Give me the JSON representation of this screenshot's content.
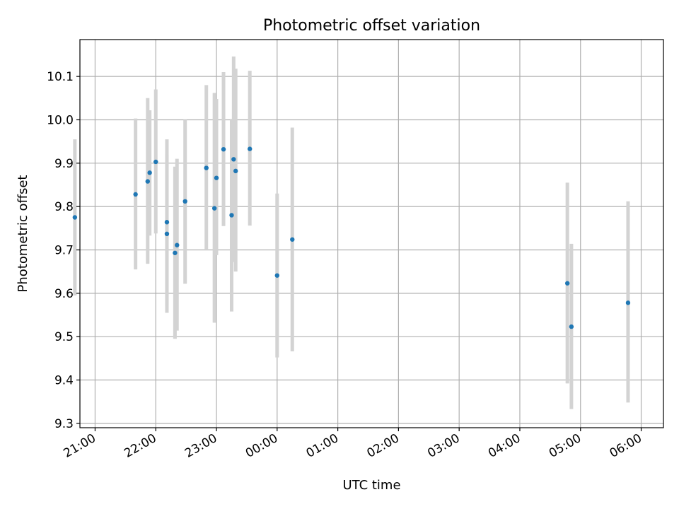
{
  "chart_data": {
    "type": "scatter",
    "title": "Photometric offset variation",
    "xlabel": "UTC time",
    "ylabel": "Photometric offset",
    "xlim": [
      "20:45",
      "30:22"
    ],
    "ylim": [
      9.29,
      10.185
    ],
    "x_ticks": [
      "21:00",
      "22:00",
      "23:00",
      "00:00",
      "01:00",
      "02:00",
      "03:00",
      "04:00",
      "05:00",
      "06:00"
    ],
    "y_ticks": [
      9.3,
      9.4,
      9.5,
      9.6,
      9.7,
      9.8,
      9.9,
      10.0,
      10.1
    ],
    "grid": true,
    "point_color": "#1f77b4",
    "error_color": "#d3d3d3",
    "points": [
      {
        "time": "20:40",
        "y": 9.775,
        "yerr_low": 9.595,
        "yerr_high": 9.955
      },
      {
        "time": "21:40",
        "y": 9.828,
        "yerr_low": 9.655,
        "yerr_high": 10.003
      },
      {
        "time": "21:52",
        "y": 9.858,
        "yerr_low": 9.668,
        "yerr_high": 10.05
      },
      {
        "time": "21:54",
        "y": 9.878,
        "yerr_low": 9.733,
        "yerr_high": 10.022
      },
      {
        "time": "22:00",
        "y": 9.903,
        "yerr_low": 9.738,
        "yerr_high": 10.07
      },
      {
        "time": "22:11",
        "y": 9.764,
        "yerr_low": 9.572,
        "yerr_high": 9.955
      },
      {
        "time": "22:11",
        "y": 9.737,
        "yerr_low": 9.555,
        "yerr_high": 9.92
      },
      {
        "time": "22:19",
        "y": 9.693,
        "yerr_low": 9.495,
        "yerr_high": 9.892
      },
      {
        "time": "22:21",
        "y": 9.711,
        "yerr_low": 9.514,
        "yerr_high": 9.91
      },
      {
        "time": "22:29",
        "y": 9.812,
        "yerr_low": 9.622,
        "yerr_high": 10.0
      },
      {
        "time": "22:50",
        "y": 9.889,
        "yerr_low": 9.702,
        "yerr_high": 10.08
      },
      {
        "time": "22:58",
        "y": 9.796,
        "yerr_low": 9.532,
        "yerr_high": 10.062
      },
      {
        "time": "23:00",
        "y": 9.866,
        "yerr_low": 9.688,
        "yerr_high": 10.048
      },
      {
        "time": "23:07",
        "y": 9.932,
        "yerr_low": 9.755,
        "yerr_high": 10.11
      },
      {
        "time": "23:15",
        "y": 9.78,
        "yerr_low": 9.558,
        "yerr_high": 10.002
      },
      {
        "time": "23:17",
        "y": 9.909,
        "yerr_low": 9.672,
        "yerr_high": 10.146
      },
      {
        "time": "23:19",
        "y": 9.882,
        "yerr_low": 9.65,
        "yerr_high": 10.118
      },
      {
        "time": "23:33",
        "y": 9.933,
        "yerr_low": 9.756,
        "yerr_high": 10.113
      },
      {
        "time": "24:00",
        "y": 9.641,
        "yerr_low": 9.452,
        "yerr_high": 9.83
      },
      {
        "time": "24:15",
        "y": 9.724,
        "yerr_low": 9.466,
        "yerr_high": 9.982
      },
      {
        "time": "28:47",
        "y": 9.623,
        "yerr_low": 9.392,
        "yerr_high": 9.855
      },
      {
        "time": "28:51",
        "y": 9.523,
        "yerr_low": 9.333,
        "yerr_high": 9.714
      },
      {
        "time": "29:47",
        "y": 9.578,
        "yerr_low": 9.348,
        "yerr_high": 9.812
      }
    ]
  }
}
